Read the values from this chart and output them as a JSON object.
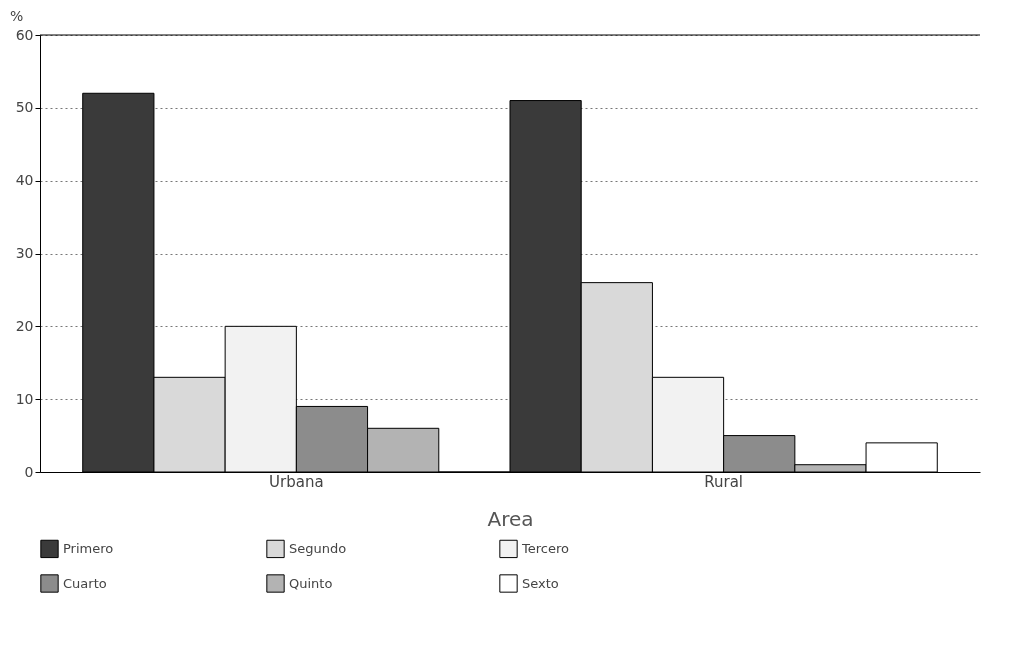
{
  "chart_data": {
    "type": "bar",
    "xlabel": "Area",
    "ylabel": "%",
    "categories": [
      "Urbana",
      "Rural"
    ],
    "series": [
      {
        "name": "Primero",
        "color": "#3a3a3a",
        "values": [
          52,
          51
        ]
      },
      {
        "name": "Segundo",
        "color": "#d9d9d9",
        "values": [
          13,
          26
        ]
      },
      {
        "name": "Tercero",
        "color": "#f2f2f2",
        "values": [
          20,
          13
        ]
      },
      {
        "name": "Cuarto",
        "color": "#8c8c8c",
        "values": [
          9,
          5
        ]
      },
      {
        "name": "Quinto",
        "color": "#b3b3b3",
        "values": [
          6,
          1
        ]
      },
      {
        "name": "Sexto",
        "color": "#ffffff",
        "values": [
          0,
          4
        ]
      }
    ],
    "ylim": [
      0,
      60
    ],
    "yticks": [
      0,
      10,
      20,
      30,
      40,
      50,
      60
    ],
    "grid": "y",
    "legend": "bottom"
  }
}
